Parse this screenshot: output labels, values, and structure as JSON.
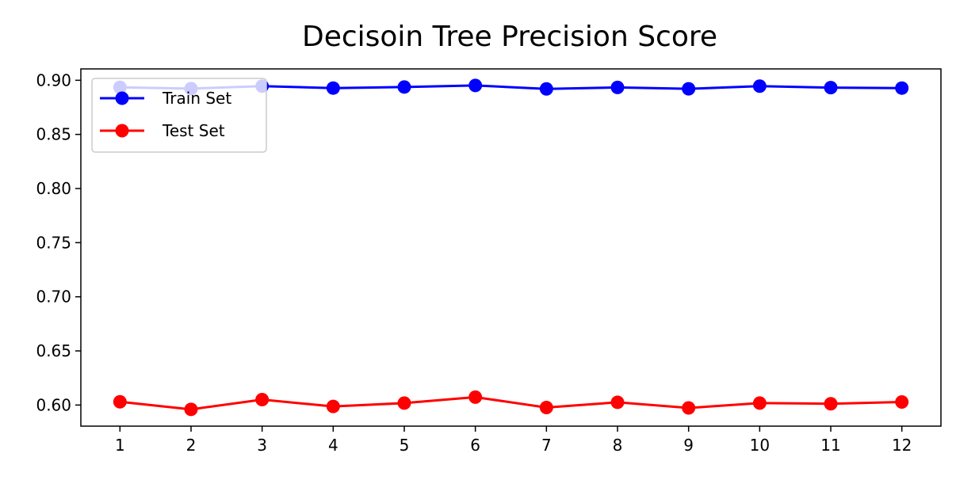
{
  "chart_data": {
    "type": "line",
    "title": "Decisoin Tree Precision Score",
    "xlabel": "",
    "ylabel": "",
    "x": [
      1,
      2,
      3,
      4,
      5,
      6,
      7,
      8,
      9,
      10,
      11,
      12
    ],
    "xlim": [
      0.45,
      12.55
    ],
    "ylim": [
      0.5805,
      0.9105
    ],
    "yticks": [
      0.6,
      0.65,
      0.7,
      0.75,
      0.8,
      0.85,
      0.9
    ],
    "ytick_labels": [
      "0.60",
      "0.65",
      "0.70",
      "0.75",
      "0.80",
      "0.85",
      "0.90"
    ],
    "grid": false,
    "legend_position": "upper-left",
    "series": [
      {
        "name": "Train Set",
        "color": "#0000ff",
        "marker": "circle",
        "values": [
          0.8935,
          0.8923,
          0.8946,
          0.8928,
          0.8938,
          0.8952,
          0.892,
          0.8934,
          0.8921,
          0.8946,
          0.8932,
          0.8928
        ]
      },
      {
        "name": "Test Set",
        "color": "#ff0000",
        "marker": "circle",
        "values": [
          0.603,
          0.596,
          0.605,
          0.5987,
          0.6018,
          0.6073,
          0.5977,
          0.6025,
          0.5973,
          0.6018,
          0.6012,
          0.6028
        ]
      }
    ]
  }
}
